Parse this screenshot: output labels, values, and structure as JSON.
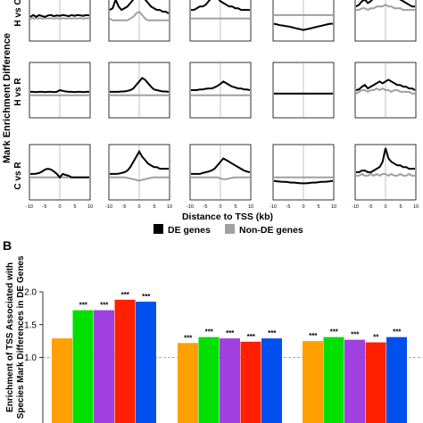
{
  "panel_a": {
    "y_label": "Mark Enrichment Difference",
    "row_labels": [
      "H vs C",
      "H vs R",
      "C vs R"
    ],
    "x_label": "Distance to TSS (kb)",
    "x_ticks": [
      "-10",
      "-5",
      "0",
      "5",
      "10"
    ],
    "legend": [
      {
        "label": "DE genes",
        "color": "#000000"
      },
      {
        "label": "Non-DE genes",
        "color": "#a0a0a0"
      }
    ]
  },
  "panel_b": {
    "letter": "B",
    "y_label_lines": [
      "Enrichment of TSS Associated with",
      "Species Mark Differences in DE Genes"
    ],
    "bar_colors": [
      "#FF9F00",
      "#00E000",
      "#A040E0",
      "#FF2000",
      "#0050F0"
    ]
  },
  "colors": {
    "de": "#000000",
    "non_de": "#a0a0a0",
    "midline": "#9a9a9a",
    "dashed": "#8a8aa0"
  },
  "chart_data": [
    {
      "type": "line",
      "description_of_grid": "3 rows x 5 columns of small profile plots, no titles printed on columns",
      "x": [
        -10,
        10
      ],
      "series": [
        {
          "name": "DE genes"
        },
        {
          "name": "Non-DE genes"
        }
      ],
      "xlabel": "Distance to TSS (kb)",
      "ylabel": "Mark Enrichment Difference",
      "rows": [
        "H vs C",
        "H vs R",
        "C vs R"
      ],
      "panels": [
        [
          {
            "de": [
              0,
              0.05,
              0,
              0.05,
              0.02,
              0,
              0.04,
              0.05,
              0.02,
              0.04,
              0.03,
              0.05,
              0.04,
              0.02,
              0.05,
              0.03,
              0.05,
              0.04,
              0.03,
              0.05,
              0.04
            ],
            "non": [
              -0.05,
              -0.04,
              -0.05,
              -0.04,
              -0.05,
              -0.04,
              -0.05,
              -0.04,
              -0.05,
              -0.04,
              -0.05,
              -0.04,
              -0.05,
              -0.04,
              -0.05,
              -0.04,
              -0.05,
              -0.04,
              -0.05,
              -0.04,
              -0.05
            ]
          },
          {
            "de": [
              0.2,
              0.25,
              0.5,
              0.3,
              0.2,
              0.25,
              0.3,
              0.4,
              0.5,
              0.6,
              0.75,
              0.6,
              0.5,
              0.4,
              0.3,
              0.25,
              0.2,
              0.2,
              0.15,
              0.15,
              0.1
            ],
            "non": [
              -0.05,
              -0.1,
              -0.1,
              -0.1,
              -0.1,
              -0.1,
              -0.1,
              -0.05,
              0,
              0.1,
              0.15,
              0.05,
              -0.05,
              -0.1,
              -0.1,
              -0.1,
              -0.1,
              -0.1,
              -0.1,
              -0.1,
              -0.1
            ]
          },
          {
            "de": [
              0.2,
              0.2,
              0.25,
              0.3,
              0.3,
              0.35,
              0.45,
              0.55,
              0.6,
              0.55,
              0.45,
              0.4,
              0.35,
              0.3,
              0.3,
              0.25,
              0.25,
              0.2,
              0.2,
              0.2,
              0.2
            ],
            "non": [
              -0.05,
              -0.05,
              -0.05,
              -0.05,
              -0.05,
              -0.05,
              -0.05,
              -0.05,
              -0.05,
              -0.05,
              -0.05,
              -0.05,
              -0.05,
              -0.05,
              -0.05,
              -0.05,
              -0.05,
              -0.05,
              -0.05,
              -0.05,
              -0.05
            ]
          },
          {
            "de": [
              -0.2,
              -0.22,
              -0.24,
              -0.25,
              -0.27,
              -0.28,
              -0.3,
              -0.32,
              -0.34,
              -0.36,
              -0.38,
              -0.36,
              -0.34,
              -0.32,
              -0.3,
              -0.28,
              -0.26,
              -0.24,
              -0.22,
              -0.2,
              -0.2
            ],
            "non": [
              0.05,
              0.05,
              0.05,
              0.05,
              0.05,
              0.05,
              0.05,
              0.05,
              0.05,
              0.05,
              0.05,
              0.05,
              0.05,
              0.05,
              0.05,
              0.05,
              0.05,
              0.05,
              0.05,
              0.05,
              0.05
            ]
          },
          {
            "de": [
              0.3,
              0.35,
              0.45,
              0.5,
              0.4,
              0.45,
              0.55,
              0.6,
              0.7,
              0.8,
              0.9,
              0.8,
              0.7,
              0.6,
              0.55,
              0.5,
              0.45,
              0.4,
              0.35,
              0.3,
              0.3
            ],
            "non": [
              0.2,
              0.2,
              0.25,
              0.25,
              0.2,
              0.25,
              0.25,
              0.3,
              0.3,
              0.3,
              0.35,
              0.3,
              0.3,
              0.25,
              0.25,
              0.25,
              0.2,
              0.2,
              0.2,
              0.2,
              0.2
            ]
          }
        ],
        [
          {
            "de": [
              0.05,
              0.05,
              0.04,
              0.05,
              0.05,
              0.04,
              0.05,
              0.05,
              0.04,
              0.05,
              0.1,
              0.08,
              0.06,
              0.05,
              0.05,
              0.04,
              0.05,
              0.05,
              0.04,
              0.05,
              0.05
            ],
            "non": [
              -0.05,
              -0.05,
              -0.05,
              -0.05,
              -0.05,
              -0.05,
              -0.05,
              -0.05,
              -0.05,
              -0.05,
              -0.05,
              -0.05,
              -0.05,
              -0.05,
              -0.05,
              -0.05,
              -0.05,
              -0.05,
              -0.05,
              -0.05,
              -0.05
            ]
          },
          {
            "de": [
              0.05,
              0.05,
              0.05,
              0.05,
              0.06,
              0.06,
              0.08,
              0.1,
              0.15,
              0.25,
              0.35,
              0.45,
              0.4,
              0.3,
              0.2,
              0.12,
              0.1,
              0.08,
              0.06,
              0.06,
              0.05
            ],
            "non": [
              -0.05,
              -0.05,
              -0.05,
              -0.05,
              -0.05,
              -0.05,
              -0.05,
              -0.05,
              -0.05,
              -0.05,
              -0.05,
              -0.05,
              -0.05,
              -0.05,
              -0.05,
              -0.05,
              -0.05,
              -0.05,
              -0.05,
              -0.05,
              -0.05
            ]
          },
          {
            "de": [
              0.1,
              0.1,
              0.1,
              0.12,
              0.12,
              0.14,
              0.15,
              0.15,
              0.18,
              0.22,
              0.28,
              0.35,
              0.3,
              0.25,
              0.2,
              0.18,
              0.15,
              0.15,
              0.12,
              0.12,
              0.1
            ],
            "non": [
              -0.05,
              -0.05,
              -0.05,
              -0.05,
              -0.05,
              -0.05,
              -0.05,
              -0.05,
              -0.05,
              -0.05,
              -0.05,
              -0.05,
              -0.05,
              -0.05,
              -0.05,
              -0.05,
              -0.05,
              -0.05,
              -0.05,
              -0.05,
              -0.05
            ]
          },
          {
            "de": [
              0,
              0,
              0,
              0,
              0,
              0,
              0,
              0,
              0,
              0,
              0,
              0,
              0,
              0,
              0,
              0,
              0,
              0,
              0,
              0,
              0
            ],
            "non": [
              0,
              0,
              0,
              0,
              0,
              0,
              0,
              0,
              0,
              0,
              0,
              0,
              0,
              0,
              0,
              0,
              0,
              0,
              0,
              0,
              0
            ]
          },
          {
            "de": [
              0.1,
              0.12,
              0.2,
              0.25,
              0.15,
              0.2,
              0.25,
              0.3,
              0.35,
              0.3,
              0.35,
              0.4,
              0.35,
              0.3,
              0.25,
              0.25,
              0.2,
              0.2,
              0.15,
              0.15,
              0.1
            ],
            "non": [
              0,
              0.05,
              0.1,
              0.1,
              0.05,
              0.1,
              0.1,
              0.15,
              0.1,
              0.15,
              0.1,
              0.1,
              0.05,
              0.1,
              0.1,
              0.05,
              0.05,
              0.05,
              0.05,
              0,
              0
            ]
          }
        ],
        [
          {
            "de": [
              0.05,
              0.05,
              0.06,
              0.08,
              0.12,
              0.18,
              0.2,
              0.18,
              0.12,
              0.05,
              -0.05,
              0.05,
              0.02,
              0,
              -0.05,
              -0.05,
              -0.05,
              -0.05,
              -0.05,
              -0.05,
              -0.05
            ],
            "non": [
              -0.05,
              -0.05,
              -0.05,
              -0.05,
              -0.05,
              -0.05,
              -0.05,
              -0.05,
              -0.05,
              -0.05,
              -0.05,
              -0.05,
              -0.05,
              -0.05,
              -0.05,
              -0.05,
              -0.05,
              -0.05,
              -0.05,
              -0.05,
              -0.05
            ]
          },
          {
            "de": [
              0.05,
              0.05,
              0.05,
              0.06,
              0.08,
              0.1,
              0.15,
              0.25,
              0.4,
              0.55,
              0.7,
              0.55,
              0.45,
              0.35,
              0.3,
              0.25,
              0.25,
              0.2,
              0.2,
              0.2,
              0.2
            ],
            "non": [
              -0.05,
              -0.05,
              -0.05,
              -0.05,
              -0.05,
              -0.05,
              -0.06,
              -0.08,
              -0.1,
              -0.12,
              -0.15,
              -0.12,
              -0.1,
              -0.08,
              -0.06,
              -0.05,
              -0.05,
              -0.05,
              -0.05,
              -0.05,
              -0.05
            ]
          },
          {
            "de": [
              0.05,
              0.05,
              0.05,
              0.05,
              0.08,
              0.1,
              0.12,
              0.15,
              0.2,
              0.3,
              0.4,
              0.5,
              0.45,
              0.4,
              0.35,
              0.3,
              0.25,
              0.2,
              0.15,
              0.12,
              0.1
            ],
            "non": [
              -0.05,
              -0.05,
              -0.05,
              -0.05,
              -0.05,
              -0.05,
              -0.05,
              -0.05,
              -0.05,
              -0.05,
              -0.08,
              -0.1,
              -0.1,
              -0.08,
              -0.06,
              -0.05,
              -0.05,
              -0.05,
              -0.05,
              -0.05,
              -0.05
            ]
          },
          {
            "de": [
              -0.15,
              -0.16,
              -0.17,
              -0.18,
              -0.18,
              -0.19,
              -0.2,
              -0.2,
              -0.21,
              -0.22,
              -0.22,
              -0.22,
              -0.21,
              -0.2,
              -0.2,
              -0.19,
              -0.18,
              -0.18,
              -0.17,
              -0.16,
              -0.15
            ],
            "non": [
              -0.05,
              -0.05,
              -0.05,
              -0.05,
              -0.05,
              -0.05,
              -0.05,
              -0.05,
              -0.05,
              -0.05,
              -0.05,
              -0.05,
              -0.05,
              -0.05,
              -0.05,
              -0.05,
              -0.05,
              -0.05,
              -0.05,
              -0.05,
              -0.05
            ]
          },
          {
            "de": [
              0.1,
              0.1,
              0.15,
              0.15,
              0.1,
              0.1,
              0.15,
              0.2,
              0.25,
              0.4,
              0.8,
              0.5,
              0.4,
              0.35,
              0.3,
              0.3,
              0.25,
              0.25,
              0.2,
              0.2,
              0.2
            ],
            "non": [
              0,
              0,
              0.05,
              0,
              0,
              0.05,
              0,
              0.05,
              0,
              0.05,
              0.05,
              0,
              0.05,
              0,
              0,
              0.05,
              0,
              0,
              0.05,
              0,
              0
            ]
          }
        ]
      ]
    },
    {
      "type": "bar",
      "groups": 3,
      "values": [
        [
          1.29,
          1.72,
          1.72,
          1.88,
          1.85
        ],
        [
          1.22,
          1.31,
          1.29,
          1.24,
          1.29
        ],
        [
          1.25,
          1.31,
          1.27,
          1.23,
          1.31
        ]
      ],
      "significance": [
        [
          "",
          "***",
          "***",
          "***",
          "***"
        ],
        [
          "***",
          "***",
          "***",
          "***",
          "***"
        ],
        [
          "***",
          "***",
          "***",
          "**",
          "***"
        ]
      ],
      "y_ticks": [
        "1.0",
        "1.5",
        "2.0"
      ],
      "ylim": [
        0.0,
        2.15
      ],
      "reference_line": 1.0,
      "ylabel": "Enrichment of TSS Associated with Species Mark Differences in DE Genes"
    }
  ]
}
